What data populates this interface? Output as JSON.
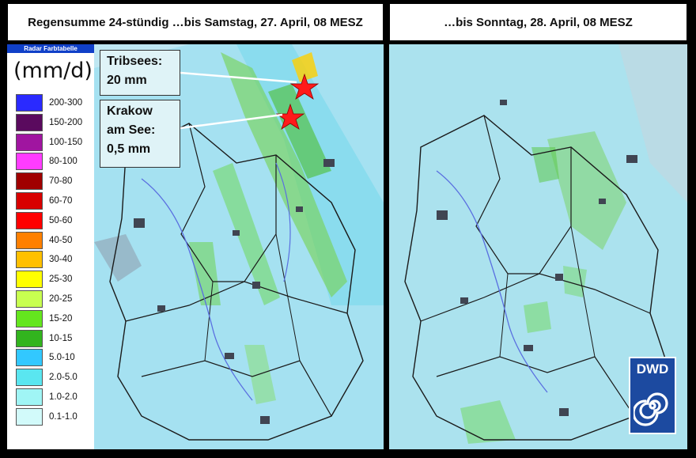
{
  "titles": {
    "left": "Regensumme 24-stündig …bis Samstag, 27. April, 08 MESZ",
    "right": "…bis Sonntag, 28. April, 08 MESZ"
  },
  "legend": {
    "header": "Radar Farbtabelle",
    "unit": "(mm/d)",
    "items": [
      {
        "label": "200-300",
        "color": "#2a2aff"
      },
      {
        "label": "150-200",
        "color": "#5a0a5e"
      },
      {
        "label": "100-150",
        "color": "#a015a0"
      },
      {
        "label": "80-100",
        "color": "#ff3cff"
      },
      {
        "label": "70-80",
        "color": "#a00000"
      },
      {
        "label": "60-70",
        "color": "#d80000"
      },
      {
        "label": "50-60",
        "color": "#ff0000"
      },
      {
        "label": "40-50",
        "color": "#ff8000"
      },
      {
        "label": "30-40",
        "color": "#ffc000"
      },
      {
        "label": "25-30",
        "color": "#ffff00"
      },
      {
        "label": "20-25",
        "color": "#c8ff50"
      },
      {
        "label": "15-20",
        "color": "#64e61e"
      },
      {
        "label": "10-15",
        "color": "#32b41e"
      },
      {
        "label": "5.0-10",
        "color": "#32c8ff"
      },
      {
        "label": "2.0-5.0",
        "color": "#5ae6f0"
      },
      {
        "label": "1.0-2.0",
        "color": "#a0f5f5"
      },
      {
        "label": "0.1-1.0",
        "color": "#d2fafa"
      }
    ]
  },
  "callouts": {
    "tribsees": {
      "line1": "Tribsees:",
      "line2": "20 mm"
    },
    "krakow": {
      "line1": "Krakow",
      "line2": "am See:",
      "line3": "0,5 mm"
    }
  },
  "logo": {
    "text": "DWD"
  },
  "colors": {
    "map_base": "#bfe7f2",
    "rain_light": "#7fd8ef",
    "rain_green": "#6cd24a",
    "marker": "#ff1a1a"
  }
}
